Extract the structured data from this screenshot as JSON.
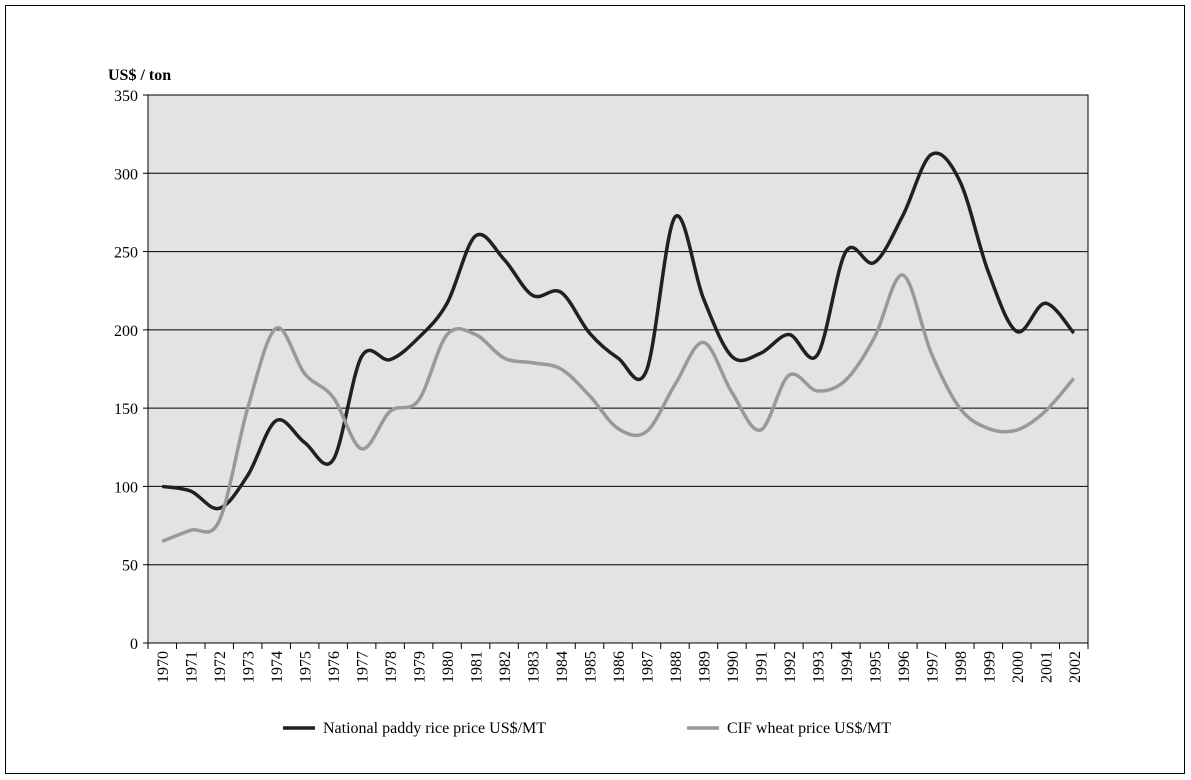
{
  "chart_data": {
    "type": "line",
    "y_label": "US$ / ton",
    "categories": [
      "1970",
      "1971",
      "1972",
      "1973",
      "1974",
      "1975",
      "1976",
      "1977",
      "1978",
      "1979",
      "1980",
      "1981",
      "1982",
      "1983",
      "1984",
      "1985",
      "1986",
      "1987",
      "1988",
      "1989",
      "1990",
      "1991",
      "1992",
      "1993",
      "1994",
      "1995",
      "1996",
      "1997",
      "1998",
      "1999",
      "2000",
      "2001",
      "2002"
    ],
    "series": [
      {
        "name": "National paddy rice price US$/MT",
        "color": "#231f20",
        "values": [
          100,
          97,
          86,
          107,
          142,
          128,
          117,
          183,
          181,
          195,
          217,
          260,
          245,
          222,
          224,
          198,
          182,
          174,
          272,
          220,
          183,
          185,
          197,
          184,
          250,
          243,
          273,
          312,
          295,
          237,
          199,
          217,
          198
        ]
      },
      {
        "name": "CIF wheat price US$/MT",
        "color": "#999999",
        "values": [
          65,
          72,
          78,
          150,
          201,
          172,
          157,
          124,
          148,
          155,
          197,
          197,
          182,
          179,
          175,
          158,
          137,
          135,
          165,
          192,
          160,
          136,
          171,
          161,
          168,
          195,
          235,
          185,
          150,
          137,
          136,
          148,
          169
        ]
      }
    ],
    "ylim": [
      0,
      350
    ],
    "yticks": [
      0,
      50,
      100,
      150,
      200,
      250,
      300,
      350
    ],
    "grid": true,
    "legend": "bottom"
  }
}
